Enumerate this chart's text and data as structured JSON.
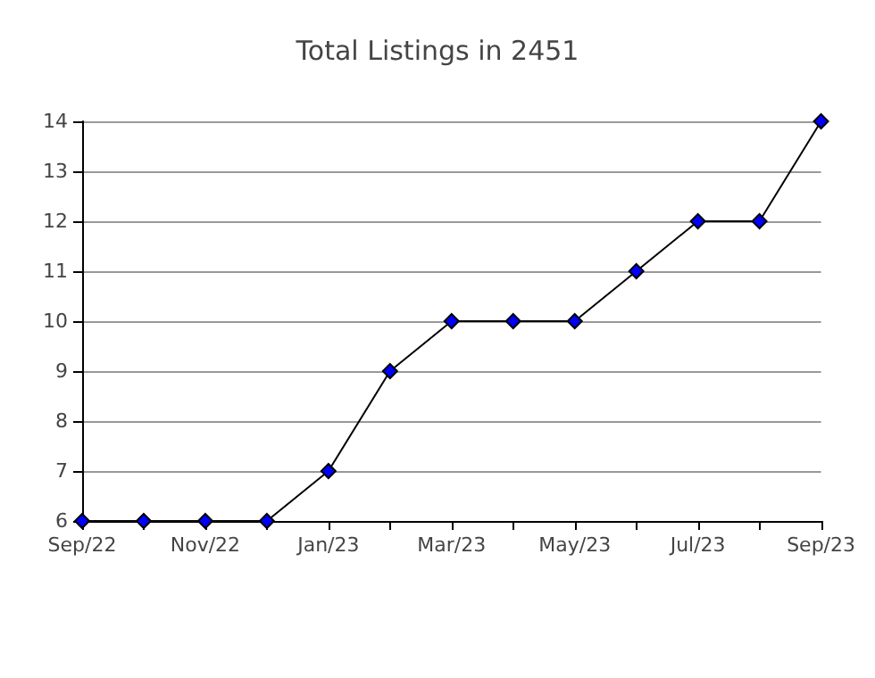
{
  "chart_data": {
    "type": "line",
    "title": "Total Listings in 2451",
    "categories": [
      "Sep/22",
      null,
      "Nov/22",
      null,
      "Jan/23",
      null,
      "Mar/23",
      null,
      "May/23",
      null,
      "Jul/23",
      null,
      "Sep/23"
    ],
    "series": [
      {
        "color": "#0000ff",
        "values": [
          6,
          6,
          6,
          6,
          7,
          9,
          10,
          10,
          10,
          11,
          12,
          12,
          14
        ]
      }
    ],
    "ylim": [
      6,
      14
    ],
    "yticks": [
      6,
      7,
      8,
      9,
      10,
      11,
      12,
      13,
      14
    ],
    "grid": "y",
    "marker": "diamond",
    "line_style": "solid"
  }
}
